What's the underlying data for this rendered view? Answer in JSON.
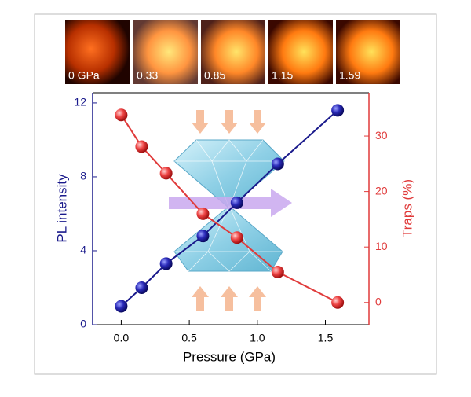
{
  "photos": [
    "0 GPa",
    "0.33",
    "0.85",
    "1.15",
    "1.59"
  ],
  "chart_data": {
    "type": "line",
    "xlabel": "Pressure (GPa)",
    "ylabel": "PL intensity",
    "y2label": "Traps (%)",
    "x": [
      0,
      0.15,
      0.33,
      0.6,
      0.85,
      1.15,
      1.59
    ],
    "series": [
      {
        "name": "PL intensity",
        "color": "#1a1a8c",
        "values": [
          1.0,
          2.0,
          3.3,
          4.8,
          6.6,
          8.7,
          11.6
        ]
      },
      {
        "name": "Traps (%)",
        "color": "#e03a3a",
        "axis": "y2",
        "values": [
          33.8,
          28.1,
          23.3,
          16.0,
          11.7,
          5.5,
          0
        ]
      }
    ],
    "xlim": [
      -0.21,
      1.82
    ],
    "xticks": [
      {
        "value": 0,
        "label": "0.0"
      },
      {
        "value": 0.5,
        "label": "0.5"
      },
      {
        "value": 1,
        "label": "1.0"
      },
      {
        "value": 1.5,
        "label": "1.5"
      }
    ],
    "ylim": [
      0,
      12.55
    ],
    "yticks": [
      0,
      4,
      8,
      12
    ],
    "y2lim": [
      -4.0,
      37.8
    ],
    "y2ticks": [
      0,
      10,
      20,
      30
    ]
  }
}
